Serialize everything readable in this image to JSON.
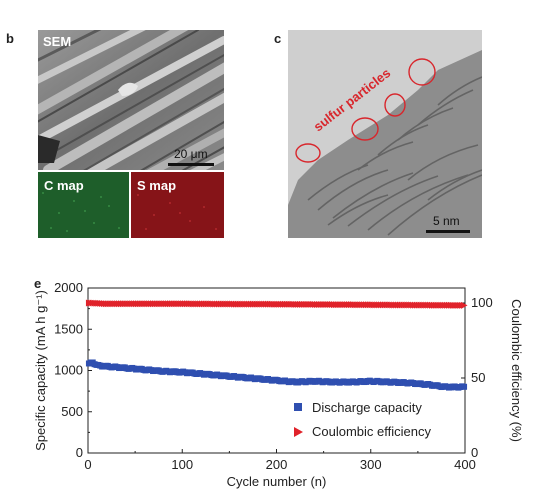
{
  "panels": {
    "b": {
      "letter": "b",
      "sem_label": "SEM",
      "sem_scale": "20 μm",
      "c_map_label": "C map",
      "s_map_label": "S map"
    },
    "c": {
      "letter": "c",
      "annotation": "sulfur particles",
      "scale": "5 nm"
    },
    "e": {
      "letter": "e"
    }
  },
  "colors": {
    "discharge": "#2f4fb0",
    "coulombic": "#e0222a",
    "c_map": "#1f6a2e",
    "s_map": "#8e1619",
    "circle": "#d8262c"
  },
  "chart_data": {
    "type": "scatter",
    "xlabel": "Cycle number (n)",
    "ylabel_left": "Specific capacity (mA h g⁻¹)",
    "ylabel_right": "Coulombic efficiency (%)",
    "xlim": [
      0,
      400
    ],
    "ylim_left": [
      0,
      2000
    ],
    "ylim_right": [
      0,
      110
    ],
    "x_ticks": [
      0,
      100,
      200,
      300,
      400
    ],
    "y_ticks_left": [
      0,
      500,
      1000,
      1500,
      2000
    ],
    "y_ticks_right": [
      0,
      50,
      100
    ],
    "legend_position": "lower-center",
    "series": [
      {
        "name": "Discharge capacity",
        "axis": "left",
        "marker": "square",
        "x": [
          1,
          5,
          10,
          20,
          40,
          60,
          80,
          100,
          120,
          140,
          160,
          180,
          200,
          220,
          240,
          260,
          280,
          300,
          320,
          340,
          360,
          380,
          400
        ],
        "y": [
          1080,
          1100,
          1060,
          1050,
          1030,
          1010,
          990,
          980,
          960,
          940,
          920,
          900,
          880,
          860,
          870,
          860,
          860,
          870,
          860,
          850,
          830,
          800,
          800
        ]
      },
      {
        "name": "Coulombic efficiency",
        "axis": "right",
        "marker": "triangle-right",
        "x": [
          1,
          5,
          20,
          50,
          100,
          150,
          200,
          250,
          300,
          350,
          400
        ],
        "y": [
          100,
          100,
          99.5,
          99.5,
          99.5,
          99.3,
          99.2,
          99,
          98.8,
          98.6,
          98.4
        ]
      }
    ]
  }
}
